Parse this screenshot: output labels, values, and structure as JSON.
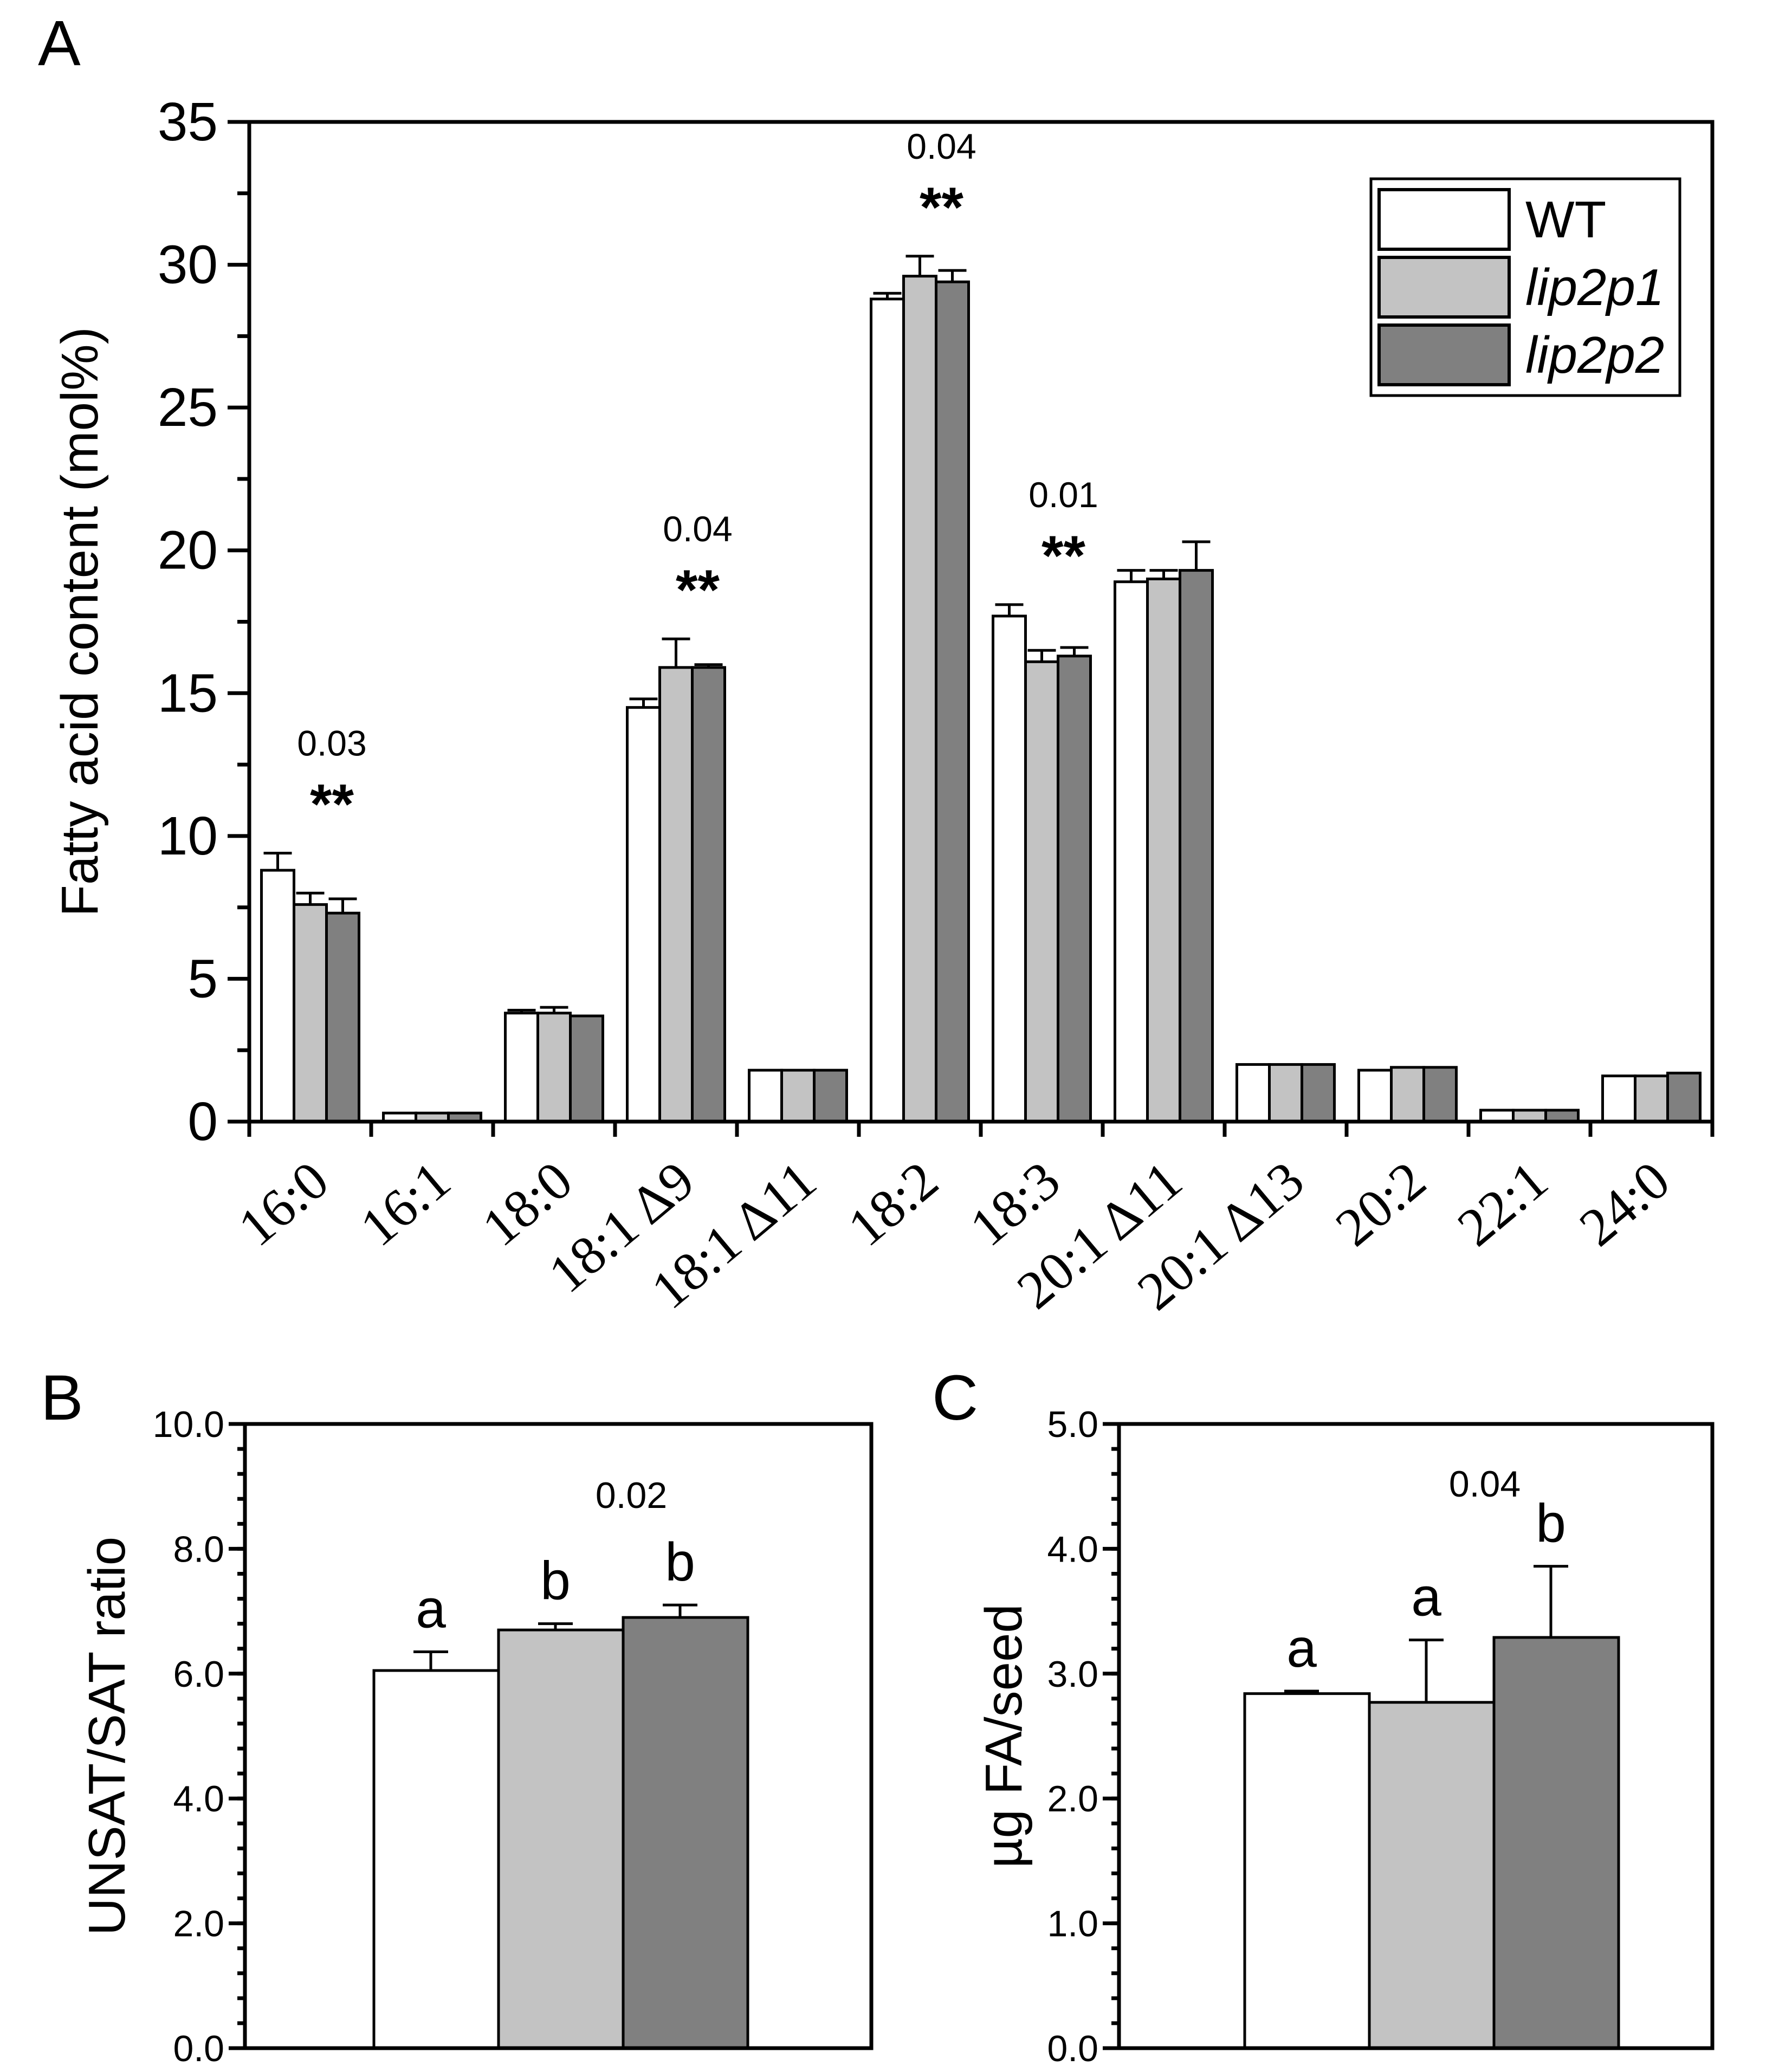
{
  "colors": {
    "WT": "#ffffff",
    "lip2p1": "#c3c3c3",
    "lip2p2": "#808080"
  },
  "chart_data": [
    {
      "panel": "A",
      "type": "bar",
      "ylabel": "Fatty acid content (mol%)",
      "ylim": [
        0,
        35
      ],
      "yticks": [
        "0",
        "5",
        "10",
        "15",
        "20",
        "25",
        "30",
        "35"
      ],
      "categories": [
        "16:0",
        "16:1",
        "18:0",
        "18:1 Δ9",
        "18:1 Δ11",
        "18:2",
        "18:3",
        "20:1 Δ11",
        "20:1 Δ13",
        "20:2",
        "22:1",
        "24:0"
      ],
      "series": [
        {
          "name": "WT",
          "key": "WT",
          "values": [
            8.8,
            0.3,
            3.8,
            14.5,
            1.8,
            28.8,
            17.7,
            18.9,
            2.0,
            1.8,
            0.4,
            1.6
          ],
          "errors": [
            0.6,
            0.0,
            0.1,
            0.3,
            0.0,
            0.2,
            0.4,
            0.4,
            0.0,
            0.0,
            0.0,
            0.0
          ]
        },
        {
          "name": "lip2p1",
          "key": "lip2p1",
          "values": [
            7.6,
            0.3,
            3.8,
            15.9,
            1.8,
            29.6,
            16.1,
            19.0,
            2.0,
            1.9,
            0.4,
            1.6
          ],
          "errors": [
            0.4,
            0.0,
            0.2,
            1.0,
            0.0,
            0.7,
            0.4,
            0.3,
            0.0,
            0.0,
            0.0,
            0.0
          ]
        },
        {
          "name": "lip2p2",
          "key": "lip2p2",
          "values": [
            7.3,
            0.3,
            3.7,
            15.9,
            1.8,
            29.4,
            16.3,
            19.3,
            2.0,
            1.9,
            0.4,
            1.7
          ],
          "errors": [
            0.5,
            0.0,
            0.0,
            0.1,
            0.0,
            0.4,
            0.3,
            1.0,
            0.0,
            0.0,
            0.0,
            0.0
          ]
        }
      ],
      "annotations": [
        {
          "category_index": 0,
          "pvalue": "0.03",
          "stars": "**"
        },
        {
          "category_index": 3,
          "pvalue": "0.04",
          "stars": "**"
        },
        {
          "category_index": 5,
          "pvalue": "0.04",
          "stars": "**"
        },
        {
          "category_index": 6,
          "pvalue": "0.01",
          "stars": "**"
        }
      ],
      "legend": {
        "placement": "top-right",
        "entries": [
          "WT",
          "lip2p1",
          "lip2p2"
        ]
      }
    },
    {
      "panel": "B",
      "type": "bar",
      "ylabel": "UNSAT/SAT ratio",
      "ylim": [
        0,
        10
      ],
      "yticks": [
        "0.0",
        "2.0",
        "4.0",
        "6.0",
        "8.0",
        "10.0"
      ],
      "categories": [
        "WT",
        "lip2p1",
        "lip2p2"
      ],
      "values": [
        6.05,
        6.7,
        6.9
      ],
      "errors": [
        0.3,
        0.1,
        0.2
      ],
      "letters": [
        "a",
        "b",
        "b"
      ],
      "pvalue": "0.02"
    },
    {
      "panel": "C",
      "type": "bar",
      "ylabel": "µg FA/seed",
      "ylim": [
        0,
        5
      ],
      "yticks": [
        "0.0",
        "1.0",
        "2.0",
        "3.0",
        "4.0",
        "5.0"
      ],
      "categories": [
        "WT",
        "lip2p1",
        "lip2p2"
      ],
      "values": [
        2.84,
        2.77,
        3.29
      ],
      "errors": [
        0.02,
        0.5,
        0.57
      ],
      "letters": [
        "a",
        "a",
        "b"
      ],
      "pvalue": "0.04"
    }
  ]
}
